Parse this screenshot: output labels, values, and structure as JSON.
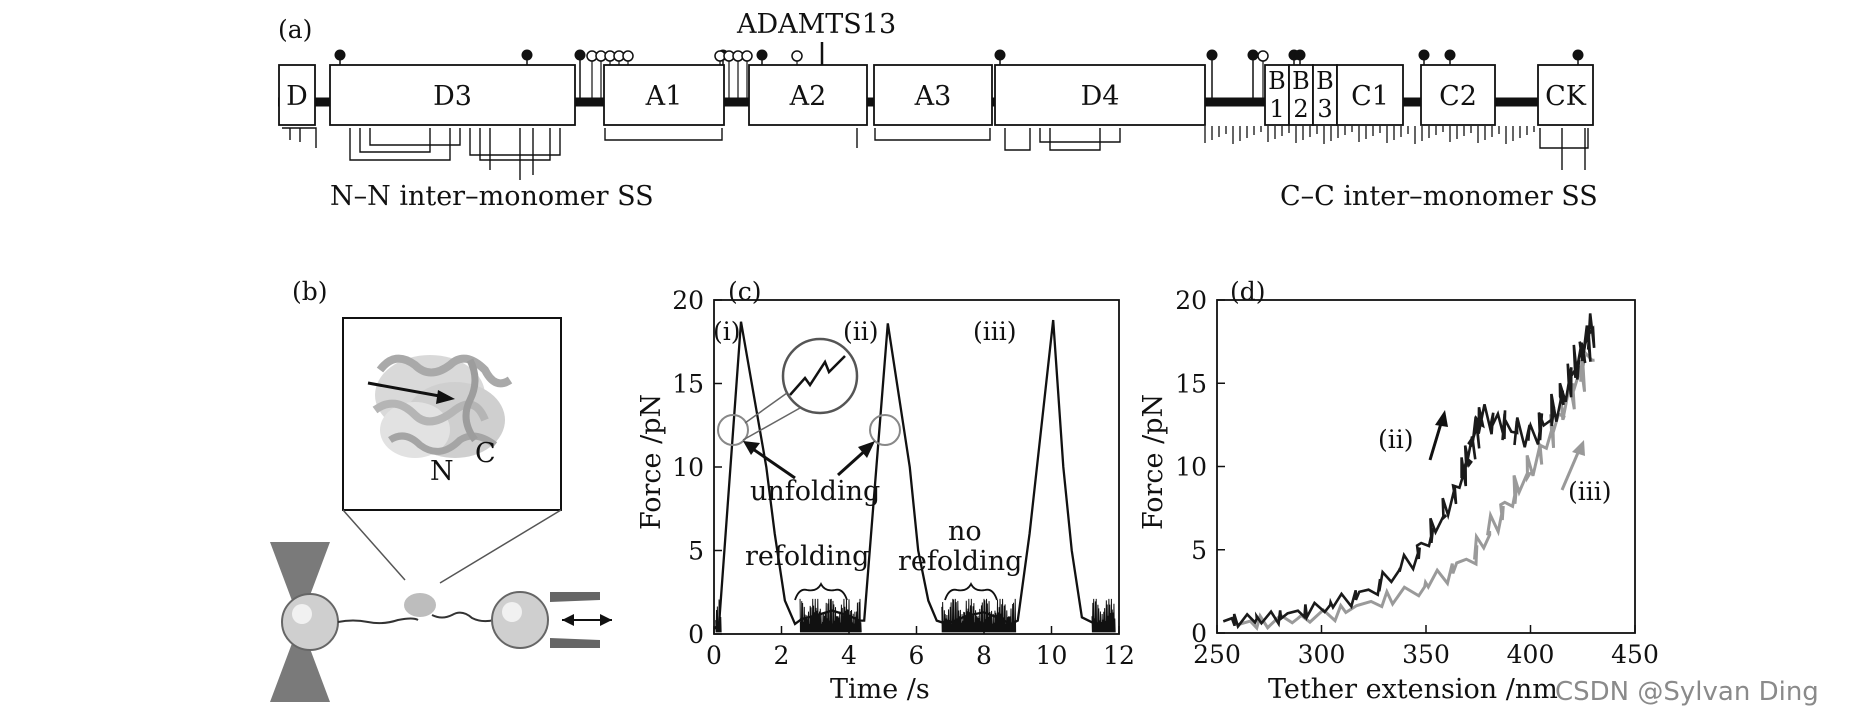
{
  "panels": {
    "a": {
      "label": "(a)",
      "arrow_label": "ADAMTS13",
      "domains": [
        "D",
        "D3",
        "A1",
        "A2",
        "A3",
        "D4",
        "B\n1",
        "B\n2",
        "B\n3",
        "C1",
        "C2",
        "CK"
      ],
      "ss_left": "N–N inter–monomer SS",
      "ss_right": "C–C inter–monomer SS"
    },
    "b": {
      "label": "(b)",
      "n_label": "N",
      "c_label": "C"
    },
    "c": {
      "label": "(c)",
      "ylabel": "Force /pN",
      "xlabel": "Time /s",
      "annotations": [
        "(i)",
        "(ii)",
        "(iii)",
        "unfolding",
        "refolding",
        "no",
        "refolding"
      ]
    },
    "d": {
      "label": "(d)",
      "ylabel": "Force /pN",
      "xlabel": "Tether extension /nm",
      "annotations": [
        "(ii)",
        "(iii)"
      ]
    }
  },
  "watermark": "CSDN @Sylvan Ding",
  "chart_data": [
    {
      "panel": "c",
      "type": "line",
      "x_ticks": [
        0,
        2,
        4,
        6,
        8,
        10,
        12
      ],
      "y_ticks": [
        0,
        5,
        10,
        15,
        20
      ],
      "xlim": [
        0,
        12
      ],
      "ylim": [
        0,
        20
      ],
      "series": [
        {
          "x": [
            0,
            0.15,
            0.8,
            1.55,
            1.8,
            2.1,
            2.4,
            2.6,
            3.0,
            3.5,
            4.0,
            4.3,
            4.45,
            5.15,
            5.8,
            6.05,
            6.35,
            6.6,
            6.9,
            7.5,
            8.0,
            8.5,
            8.8,
            9.0,
            9.35,
            10.05,
            10.35,
            10.6,
            10.9,
            11.5
          ],
          "y": [
            0.3,
            0.6,
            18.7,
            10,
            6,
            2,
            0.6,
            0.9,
            1.1,
            1.4,
            1.1,
            0.8,
            0.8,
            18.6,
            10,
            5,
            2,
            0.8,
            0.6,
            1.1,
            1.3,
            0.9,
            0.6,
            0.8,
            6,
            18.8,
            10,
            5,
            1,
            0.4
          ]
        }
      ]
    },
    {
      "panel": "d",
      "type": "line",
      "x_ticks": [
        250,
        300,
        350,
        400,
        450
      ],
      "y_ticks": [
        0,
        5,
        10,
        15,
        20
      ],
      "xlim": [
        250,
        450
      ],
      "ylim": [
        0,
        20
      ],
      "series": [
        {
          "x": [
            253,
            275,
            300,
            325,
            345,
            358,
            368,
            372,
            376,
            388,
            400,
            412,
            420,
            426,
            430
          ],
          "y": [
            0.7,
            0.9,
            1.5,
            2.6,
            4.6,
            7,
            9.6,
            11.3,
            12.9,
            12.4,
            11.8,
            13.4,
            15.6,
            17.2,
            18.3
          ]
        },
        {
          "x": [
            260,
            300,
            345,
            372,
            385,
            398,
            410,
            420,
            430
          ],
          "y": [
            0.5,
            1,
            2.5,
            4.5,
            7,
            9.5,
            12,
            14.5,
            17
          ]
        }
      ]
    }
  ]
}
